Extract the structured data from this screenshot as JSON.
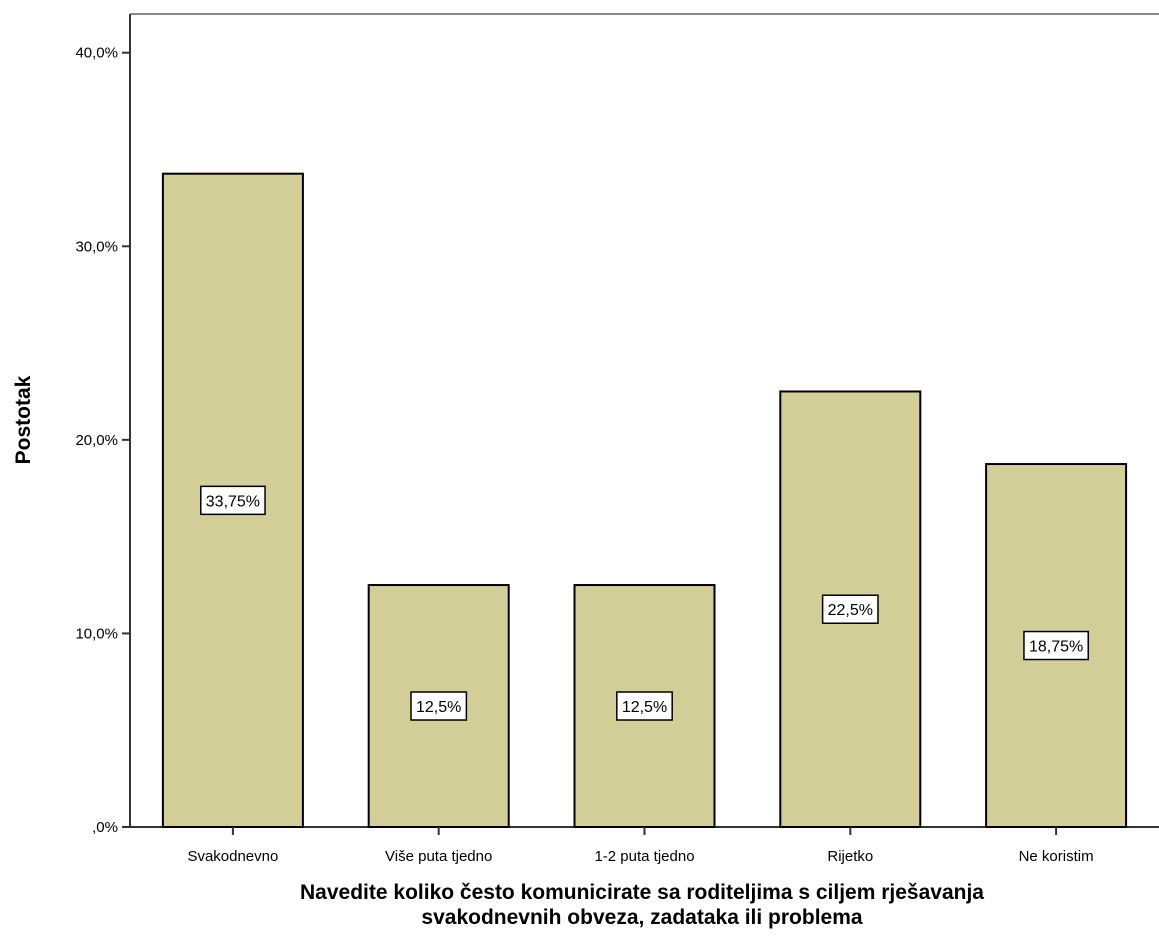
{
  "chart_data": {
    "type": "bar",
    "title": "",
    "xlabel": "Navedite koliko često komunicirate sa roditeljima s ciljem rješavanja svakodnevnih obveza, zadataka ili problema",
    "xlabel_lines": [
      "Navedite koliko često komunicirate sa roditeljima s ciljem rješavanja",
      "svakodnevnih obveza, zadataka ili problema"
    ],
    "ylabel": "Postotak",
    "categories": [
      "Svakodnevno",
      "Više puta tjedno",
      "1-2 puta tjedno",
      "Rijetko",
      "Ne koristim"
    ],
    "values": [
      33.75,
      12.5,
      12.5,
      22.5,
      18.75
    ],
    "data_labels": [
      "33,75%",
      "12,5%",
      "12,5%",
      "22,5%",
      "18,75%"
    ],
    "ylim": [
      0,
      42
    ],
    "yticks": [
      0,
      10,
      20,
      30,
      40
    ],
    "ytick_labels": [
      ",0%",
      "10,0%",
      "20,0%",
      "30,0%",
      "40,0%"
    ],
    "grid": false,
    "bar_color": "#d3ce97",
    "bar_edge_color": "#000000"
  }
}
